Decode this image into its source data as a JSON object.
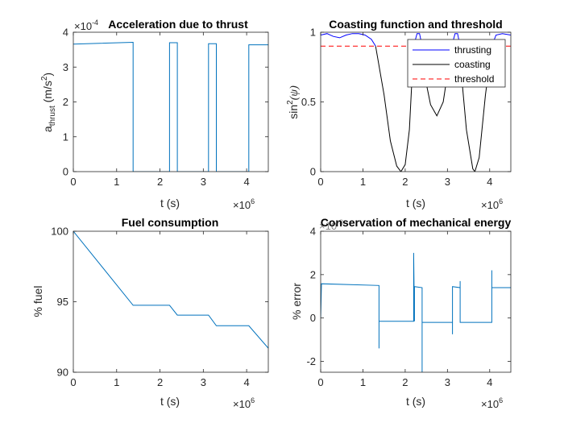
{
  "chart_data": [
    {
      "type": "line",
      "title": "Acceleration due to thrust",
      "xlabel": "t (s)",
      "ylabel": "a_thrust (m/s^2)",
      "ylabel_main": "a",
      "ylabel_sub": "thrust",
      "ylabel_units": " (m/s",
      "ylabel_sup": "2",
      "ylabel_close": ")",
      "xlim": [
        0,
        4.5
      ],
      "ylim": [
        0,
        4
      ],
      "xticks": [
        "0",
        "1",
        "2",
        "3",
        "4"
      ],
      "yticks": [
        "0",
        "1",
        "2",
        "3",
        "4"
      ],
      "x_multiplier": "×10",
      "x_multiplier_exp": "6",
      "y_multiplier": "×10",
      "y_multiplier_exp": "-4",
      "grid": false,
      "legend": "none",
      "colors": {
        "series": "#0072BD"
      },
      "series": [
        {
          "x": [
            0,
            1.38,
            1.38,
            2.22,
            2.22,
            2.4,
            2.4,
            3.12,
            3.12,
            3.3,
            3.3,
            4.05,
            4.05,
            4.5
          ],
          "y": [
            3.66,
            3.71,
            0,
            0,
            3.7,
            3.7,
            0,
            0,
            3.67,
            3.67,
            0,
            0,
            3.64,
            3.64
          ]
        }
      ]
    },
    {
      "type": "line",
      "title": "Coasting function and threshold",
      "xlabel": "t (s)",
      "ylabel": "sin^2(ψ)",
      "ylabel_main": "sin",
      "ylabel_sup": "2",
      "ylabel_rest": "(ψ)",
      "xlim": [
        0,
        4.5
      ],
      "ylim": [
        0,
        1
      ],
      "xticks": [
        "0",
        "1",
        "2",
        "3",
        "4"
      ],
      "yticks": [
        "0",
        "0.5",
        "1"
      ],
      "x_multiplier": "×10",
      "x_multiplier_exp": "6",
      "grid": false,
      "legend": "top-right",
      "colors": {
        "thrusting": "#0000FF",
        "coasting": "#000000",
        "threshold": "#FF0000"
      },
      "series": [
        {
          "name": "thrusting",
          "x": [
            0,
            0.15,
            0.3,
            0.45,
            0.6,
            0.75,
            0.9,
            1.05,
            1.2,
            1.3
          ],
          "y": [
            0.98,
            0.99,
            0.97,
            0.96,
            0.98,
            0.99,
            0.99,
            0.98,
            0.95,
            0.9
          ]
        },
        {
          "name": "coasting",
          "x": [
            1.3,
            1.5,
            1.65,
            1.8,
            1.9,
            2.0,
            2.1,
            2.2,
            2.4,
            2.6,
            2.75,
            2.9,
            3.1,
            3.3,
            3.45,
            3.6,
            3.65,
            3.75,
            3.9,
            4.05
          ],
          "y": [
            0.9,
            0.55,
            0.22,
            0.04,
            0.0,
            0.05,
            0.3,
            0.9,
            0.78,
            0.48,
            0.4,
            0.5,
            0.9,
            0.8,
            0.3,
            0.02,
            0.0,
            0.1,
            0.55,
            0.9
          ]
        },
        {
          "name": "threshold",
          "style": "dashed",
          "x": [
            0,
            4.5
          ],
          "y": [
            0.9,
            0.9
          ]
        }
      ],
      "thrusting_arcs": [
        {
          "x": [
            2.2,
            2.28,
            2.34,
            2.4
          ],
          "y": [
            0.9,
            0.99,
            0.99,
            0.9
          ]
        },
        {
          "x": [
            3.1,
            3.18,
            3.24,
            3.3
          ],
          "y": [
            0.9,
            0.99,
            0.99,
            0.9
          ]
        },
        {
          "x": [
            4.05,
            4.15,
            4.3,
            4.5
          ],
          "y": [
            0.9,
            0.98,
            0.99,
            0.98
          ]
        }
      ]
    },
    {
      "type": "line",
      "title": "Fuel consumption",
      "xlabel": "t (s)",
      "ylabel": "% fuel",
      "xlim": [
        0,
        4.5
      ],
      "ylim": [
        90,
        100
      ],
      "xticks": [
        "0",
        "1",
        "2",
        "3",
        "4"
      ],
      "yticks": [
        "90",
        "95",
        "100"
      ],
      "x_multiplier": "×10",
      "x_multiplier_exp": "6",
      "grid": false,
      "legend": "none",
      "colors": {
        "series": "#0072BD"
      },
      "series": [
        {
          "x": [
            0,
            1.38,
            2.22,
            2.4,
            3.12,
            3.3,
            4.05,
            4.5
          ],
          "y": [
            100,
            94.75,
            94.75,
            94.05,
            94.05,
            93.3,
            93.3,
            91.7
          ]
        }
      ]
    },
    {
      "type": "line",
      "title": "Conservation of mechanical energy",
      "xlabel": "t (s)",
      "ylabel": "% error",
      "xlim": [
        0,
        4.5
      ],
      "ylim": [
        -2.5,
        4
      ],
      "xticks": [
        "0",
        "1",
        "2",
        "3",
        "4"
      ],
      "yticks": [
        "-2",
        "0",
        "2",
        "4"
      ],
      "x_multiplier": "×10",
      "x_multiplier_exp": "6",
      "y_multiplier": "×10",
      "y_multiplier_exp": "-3",
      "grid": false,
      "legend": "none",
      "colors": {
        "series": "#0072BD"
      },
      "series": [
        {
          "x": [
            0,
            0.02,
            1.38,
            1.38,
            1.38,
            2.2,
            2.2,
            2.22,
            2.22,
            2.4,
            2.4,
            2.4,
            2.4,
            3.12,
            3.12,
            3.12,
            3.3,
            3.3,
            3.3,
            3.3,
            4.05,
            4.05,
            4.05,
            4.05,
            4.5
          ],
          "y": [
            0,
            1.58,
            1.5,
            -1.4,
            -0.15,
            -0.15,
            3.0,
            -0.15,
            1.45,
            1.4,
            -2.5,
            -0.15,
            -0.2,
            -0.2,
            -0.75,
            1.45,
            1.4,
            1.7,
            -0.15,
            -0.2,
            -0.2,
            2.2,
            1.45,
            1.4,
            1.4
          ]
        }
      ]
    }
  ]
}
